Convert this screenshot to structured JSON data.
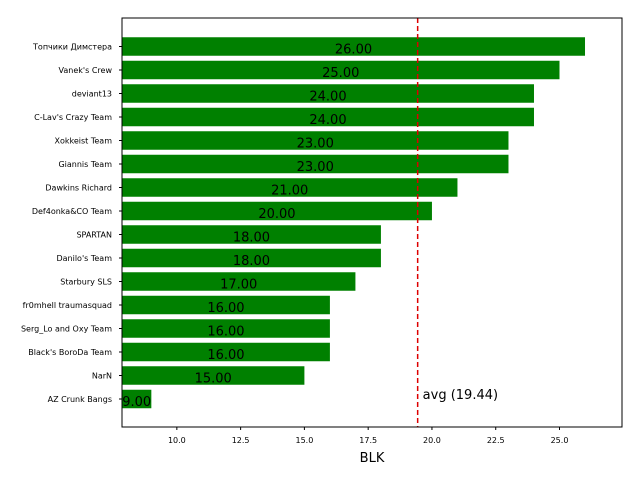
{
  "chart_data": {
    "type": "bar",
    "orientation": "horizontal",
    "categories": [
      "Топчики Димстера",
      "Vanek's Crew",
      "deviant13",
      "C-Lav's Crazy Team",
      "Xokkeist Team",
      "Giannis Team",
      "Dawkins Richard",
      "Def4onka&CO Team",
      "SPARTAN",
      "Danilo's Team",
      "Starbury SLS",
      "fr0mhell traumasquad",
      "Serg_Lo and Oxy Team",
      "Black's BoroDa Team",
      "NarN",
      "AZ Crunk Bangs"
    ],
    "values": [
      26,
      25,
      24,
      24,
      23,
      23,
      21,
      20,
      18,
      18,
      17,
      16,
      16,
      16,
      15,
      9
    ],
    "value_labels": [
      "26.00",
      "25.00",
      "24.00",
      "24.00",
      "23.00",
      "23.00",
      "21.00",
      "20.00",
      "18.00",
      "18.00",
      "17.00",
      "16.00",
      "16.00",
      "16.00",
      "15.00",
      "9.00"
    ],
    "xlabel": "BLK",
    "ylabel": "",
    "xlim": [
      7.85,
      27.45
    ],
    "xticks": [
      10.0,
      12.5,
      15.0,
      17.5,
      20.0,
      22.5,
      25.0
    ],
    "xtick_labels": [
      "10.0",
      "12.5",
      "15.0",
      "17.5",
      "20.0",
      "22.5",
      "25.0"
    ],
    "reference_line": {
      "value": 19.44,
      "label": "avg (19.44)",
      "color": "#dd0000",
      "style": "dashed"
    },
    "bar_color": "#008000",
    "grid": false
  }
}
